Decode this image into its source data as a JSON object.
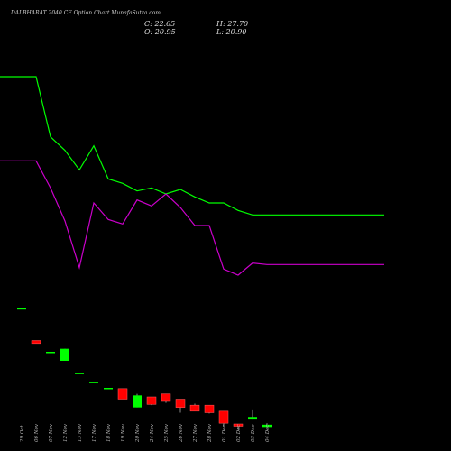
{
  "title": "DALBHARAT 2040 CE Option Chart MunafaSutra.com",
  "ohlc": {
    "close_label": "C: 22.65",
    "open_label": "O: 20.95",
    "high_label": "H: 27.70",
    "low_label": "L: 20.90"
  },
  "colors": {
    "background": "#000000",
    "up": "#00ff00",
    "down": "#ff0000",
    "line_green": "#00ff00",
    "line_magenta": "#cc00cc",
    "text": "#e0e0e0"
  },
  "chart_data": {
    "type": "candlestick",
    "grid": false,
    "categories": [
      "29 Oct",
      "06 Nov",
      "07 Nov",
      "12 Nov",
      "13 Nov",
      "17 Nov",
      "18 Nov",
      "19 Nov",
      "20 Nov",
      "24 Nov",
      "25 Nov",
      "26 Nov",
      "27 Nov",
      "28 Nov",
      "01 Dec",
      "02 Dec",
      "03 Dec",
      "04 Dec"
    ],
    "candles": [
      {
        "o": 95.0,
        "h": 95.0,
        "l": 95.0,
        "c": 95.0
      },
      {
        "o": 73.5,
        "h": 73.5,
        "l": 71.5,
        "c": 71.5
      },
      {
        "o": 66.0,
        "h": 66.0,
        "l": 66.0,
        "c": 66.0
      },
      {
        "o": 60.0,
        "h": 68.0,
        "l": 60.0,
        "c": 68.0
      },
      {
        "o": 52.0,
        "h": 52.0,
        "l": 52.0,
        "c": 52.0
      },
      {
        "o": 46.0,
        "h": 46.0,
        "l": 46.0,
        "c": 46.0
      },
      {
        "o": 42.0,
        "h": 42.0,
        "l": 42.0,
        "c": 42.0
      },
      {
        "o": 41.5,
        "h": 41.5,
        "l": 34.5,
        "c": 34.5
      },
      {
        "o": 29.0,
        "h": 38.0,
        "l": 29.0,
        "c": 37.0
      },
      {
        "o": 36.0,
        "h": 36.0,
        "l": 30.5,
        "c": 31.0
      },
      {
        "o": 38.0,
        "h": 38.0,
        "l": 32.0,
        "c": 33.0
      },
      {
        "o": 34.5,
        "h": 34.5,
        "l": 25.5,
        "c": 29.0
      },
      {
        "o": 30.5,
        "h": 31.5,
        "l": 26.5,
        "c": 26.5
      },
      {
        "o": 30.5,
        "h": 30.5,
        "l": 25.0,
        "c": 25.5
      },
      {
        "o": 26.5,
        "h": 26.5,
        "l": 16.5,
        "c": 18.5
      },
      {
        "o": 18.0,
        "h": 18.0,
        "l": 14.5,
        "c": 16.5
      },
      {
        "o": 20.95,
        "h": 27.7,
        "l": 20.9,
        "c": 22.65
      },
      {
        "o": 16.0,
        "h": 18.5,
        "l": 15.0,
        "c": 17.5
      }
    ],
    "ma_series": [
      {
        "color": "#00ff00",
        "values": [
          249,
          249,
          209,
          200,
          187,
          203,
          181,
          178,
          173,
          175,
          171,
          174,
          169,
          165,
          165,
          160,
          157,
          157
        ]
      },
      {
        "color": "#cc00cc",
        "values": [
          193,
          193,
          175,
          153,
          122,
          165,
          154,
          151,
          167,
          163,
          171,
          162,
          150,
          150,
          121,
          117,
          125,
          124
        ]
      }
    ],
    "ylim": [
      0,
      300
    ]
  }
}
